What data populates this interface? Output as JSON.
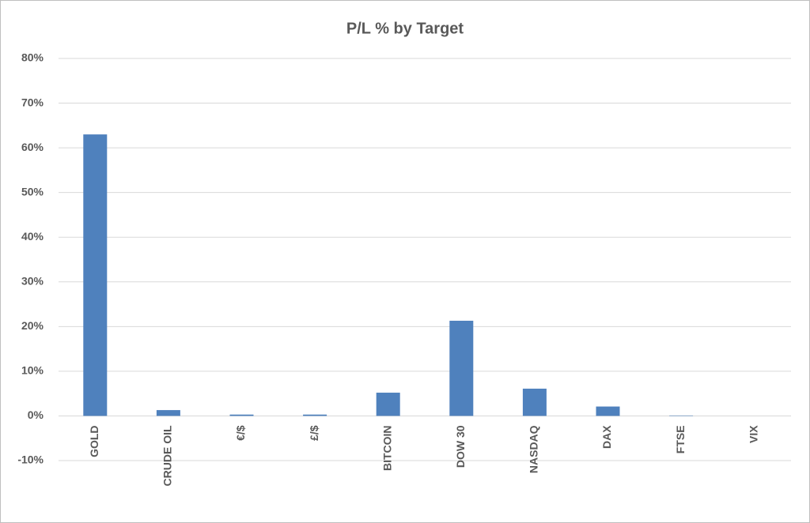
{
  "chart_data": {
    "type": "bar",
    "title": "P/L % by Target",
    "categories": [
      "GOLD",
      "CRUDE OIL",
      "€/$",
      "£/$",
      "BITCOIN",
      "DOW 30",
      "NASDAQ",
      "DAX",
      "FTSE",
      "VIX"
    ],
    "values": [
      63,
      1.3,
      0.3,
      0.3,
      5.2,
      21.3,
      6.1,
      2.1,
      0.1,
      0
    ],
    "color": "#4f81bd",
    "ylim": [
      -10,
      80
    ],
    "yticks": [
      {
        "value": -10,
        "label": "-10%"
      },
      {
        "value": 0,
        "label": "0%"
      },
      {
        "value": 10,
        "label": "10%"
      },
      {
        "value": 20,
        "label": "20%"
      },
      {
        "value": 30,
        "label": "30%"
      },
      {
        "value": 40,
        "label": "40%"
      },
      {
        "value": 50,
        "label": "50%"
      },
      {
        "value": 60,
        "label": "60%"
      },
      {
        "value": 70,
        "label": "70%"
      },
      {
        "value": 80,
        "label": "80%"
      }
    ],
    "grid": true
  }
}
